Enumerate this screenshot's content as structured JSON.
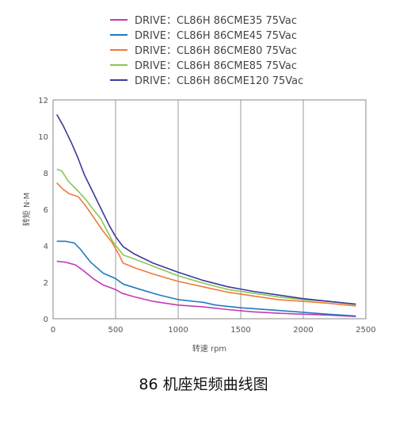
{
  "caption": "86 机座矩频曲线图",
  "chart_data": {
    "type": "line",
    "xlabel": "转速 rpm",
    "ylabel": "转矩 N·M",
    "xlim": [
      0,
      2500
    ],
    "ylim": [
      0,
      12
    ],
    "xticks": [
      "0",
      "500",
      "1000",
      "1500",
      "2000",
      "2500"
    ],
    "yticks": [
      "0",
      "2",
      "4",
      "6",
      "8",
      "10",
      "12"
    ],
    "grid": "vertical",
    "legend": "top",
    "series": [
      {
        "name": "DRIVE：CL86H 86CME35   75Vac",
        "color": "#c43ab8",
        "x": [
          30,
          100,
          180,
          250,
          320,
          400,
          500,
          550,
          650,
          800,
          1000,
          1200,
          1400,
          1600,
          1800,
          2000,
          2200,
          2420
        ],
        "y": [
          3.15,
          3.1,
          2.95,
          2.6,
          2.2,
          1.85,
          1.6,
          1.4,
          1.2,
          0.95,
          0.75,
          0.65,
          0.5,
          0.38,
          0.3,
          0.25,
          0.2,
          0.12
        ]
      },
      {
        "name": "DRIVE：CL86H 86CME45   75Vac",
        "color": "#1f7bc1",
        "x": [
          30,
          100,
          170,
          220,
          300,
          400,
          500,
          560,
          700,
          850,
          1000,
          1200,
          1300,
          1500,
          1800,
          2000,
          2200,
          2420
        ],
        "y": [
          4.25,
          4.25,
          4.15,
          3.8,
          3.1,
          2.5,
          2.2,
          1.9,
          1.6,
          1.3,
          1.05,
          0.9,
          0.75,
          0.6,
          0.45,
          0.35,
          0.25,
          0.15
        ]
      },
      {
        "name": "DRIVE：CL86H 86CME80   75Vac",
        "color": "#ef7a3c",
        "x": [
          30,
          80,
          130,
          200,
          260,
          330,
          400,
          470,
          520,
          560,
          650,
          800,
          1000,
          1200,
          1400,
          1600,
          1800,
          2000,
          2200,
          2420
        ],
        "y": [
          7.45,
          7.1,
          6.85,
          6.7,
          6.2,
          5.5,
          4.8,
          4.2,
          3.6,
          3.05,
          2.8,
          2.45,
          2.05,
          1.75,
          1.45,
          1.25,
          1.05,
          0.95,
          0.85,
          0.7
        ]
      },
      {
        "name": "DRIVE：CL86H 86CME85   75Vac",
        "color": "#8cc654",
        "x": [
          30,
          70,
          120,
          200,
          260,
          320,
          380,
          430,
          480,
          560,
          700,
          850,
          1000,
          1200,
          1400,
          1600,
          1800,
          2000,
          2200,
          2420
        ],
        "y": [
          8.2,
          8.1,
          7.55,
          7.0,
          6.55,
          6.0,
          5.5,
          4.85,
          4.2,
          3.5,
          3.15,
          2.75,
          2.35,
          1.95,
          1.6,
          1.4,
          1.2,
          1.05,
          0.95,
          0.78
        ]
      },
      {
        "name": "DRIVE：CL86H 86CME120 75Vac",
        "color": "#3a3a98",
        "x": [
          30,
          80,
          150,
          200,
          250,
          300,
          350,
          400,
          450,
          500,
          560,
          650,
          800,
          1000,
          1200,
          1400,
          1600,
          1800,
          2000,
          2200,
          2420
        ],
        "y": [
          11.2,
          10.6,
          9.6,
          8.8,
          7.9,
          7.2,
          6.5,
          5.8,
          5.1,
          4.5,
          3.95,
          3.55,
          3.05,
          2.55,
          2.1,
          1.75,
          1.5,
          1.3,
          1.1,
          0.95,
          0.8
        ]
      }
    ]
  }
}
